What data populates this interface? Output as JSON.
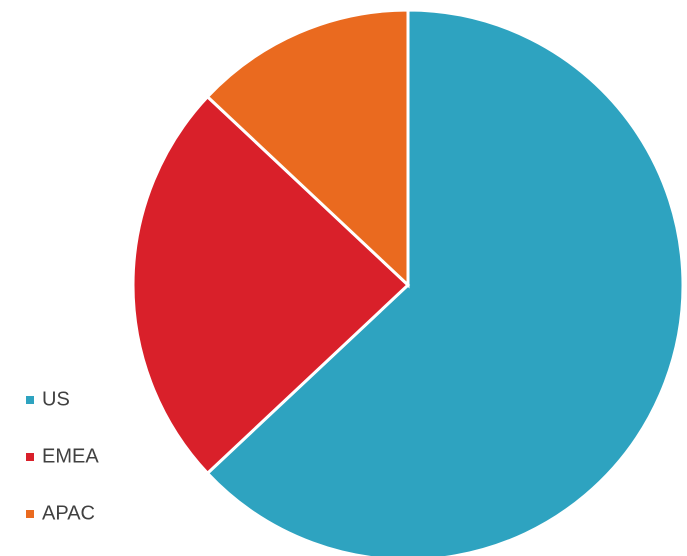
{
  "chart_data": {
    "type": "pie",
    "categories": [
      "US",
      "EMEA",
      "APAC"
    ],
    "values": [
      63,
      24,
      13
    ],
    "colors": [
      "#2ea3c0",
      "#d9202a",
      "#ea6a1f"
    ],
    "legend": "bottom-left"
  }
}
